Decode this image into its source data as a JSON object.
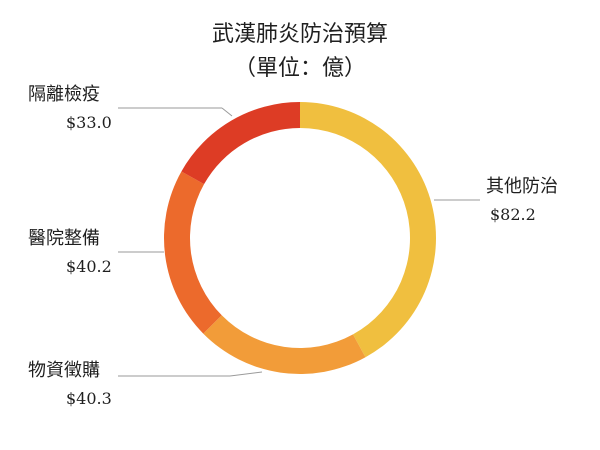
{
  "chart_data": {
    "type": "pie",
    "style": "donut",
    "title": "武漢肺炎防治預算",
    "subtitle": "（單位：億）",
    "slices": [
      {
        "label": "其他防治",
        "value": 82.2,
        "value_label": "$82.2",
        "color": "#f0bf3f"
      },
      {
        "label": "物資徵購",
        "value": 40.3,
        "value_label": "$40.3",
        "color": "#f29c39"
      },
      {
        "label": "醫院整備",
        "value": 40.2,
        "value_label": "$40.2",
        "color": "#ec6a2c"
      },
      {
        "label": "隔離檢疫",
        "value": 33.0,
        "value_label": "$33.0",
        "color": "#dd3c25"
      }
    ],
    "legend": "none"
  }
}
